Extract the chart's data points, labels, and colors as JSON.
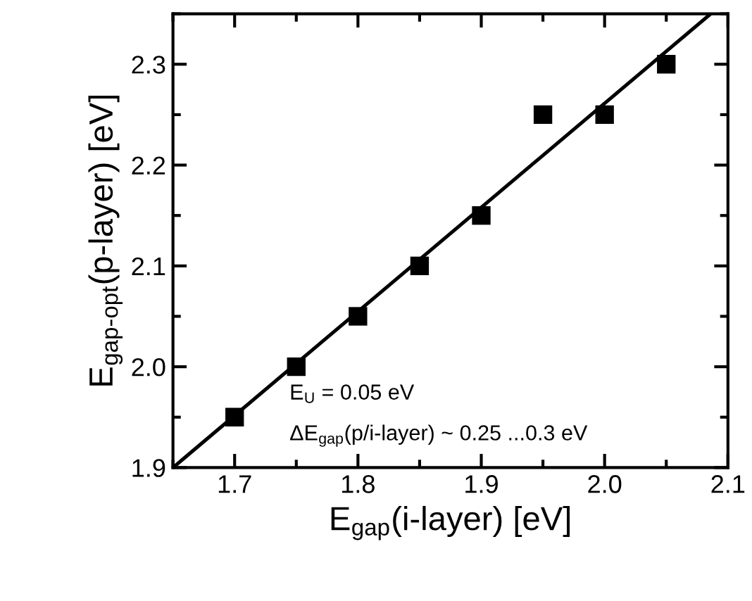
{
  "chart_data": {
    "type": "scatter",
    "xlabel": "E$_{gap}$(i-layer) [eV]",
    "ylabel": "E$_{gap-opt}$(p-layer) [eV]",
    "series": [
      {
        "color": "#000000",
        "marker": "square",
        "x": [
          1.7,
          1.75,
          1.8,
          1.85,
          1.9,
          1.95,
          2.0,
          2.05
        ],
        "values": [
          1.95,
          2.0,
          2.05,
          2.1,
          2.15,
          2.25,
          2.25,
          2.3
        ]
      },
      {
        "type": "line",
        "color": "#000000",
        "line_style": "solid",
        "x": [
          1.65,
          2.086
        ],
        "values": [
          1.9,
          2.35
        ]
      }
    ],
    "xlim": [
      1.65,
      2.1
    ],
    "xticks": [
      {
        "value": 1.65,
        "label": null
      },
      1.7,
      {
        "value": 1.75,
        "label": null
      },
      1.8,
      {
        "value": 1.85,
        "label": null
      },
      1.9,
      {
        "value": 1.95,
        "label": null
      },
      {
        "value": 2.0,
        "label": "2.0"
      },
      {
        "value": 2.05,
        "label": null
      },
      2.1
    ],
    "ylim": [
      1.9,
      2.35
    ],
    "yticks": [
      1.9,
      {
        "value": 1.95,
        "label": null
      },
      {
        "value": 2.0,
        "label": "2.0"
      },
      {
        "value": 2.05,
        "label": null
      },
      2.1,
      {
        "value": 2.15,
        "label": null
      },
      2.2,
      {
        "value": 2.25,
        "label": null
      },
      2.3,
      {
        "value": 2.35,
        "label": null
      }
    ],
    "annotations": [
      "E$_{U}$ = 0.05 eV",
      "ΔE$_{gap}$(p/i-layer) ~ 0.25 ...0.3 eV"
    ],
    "grid": false,
    "legend": false
  }
}
